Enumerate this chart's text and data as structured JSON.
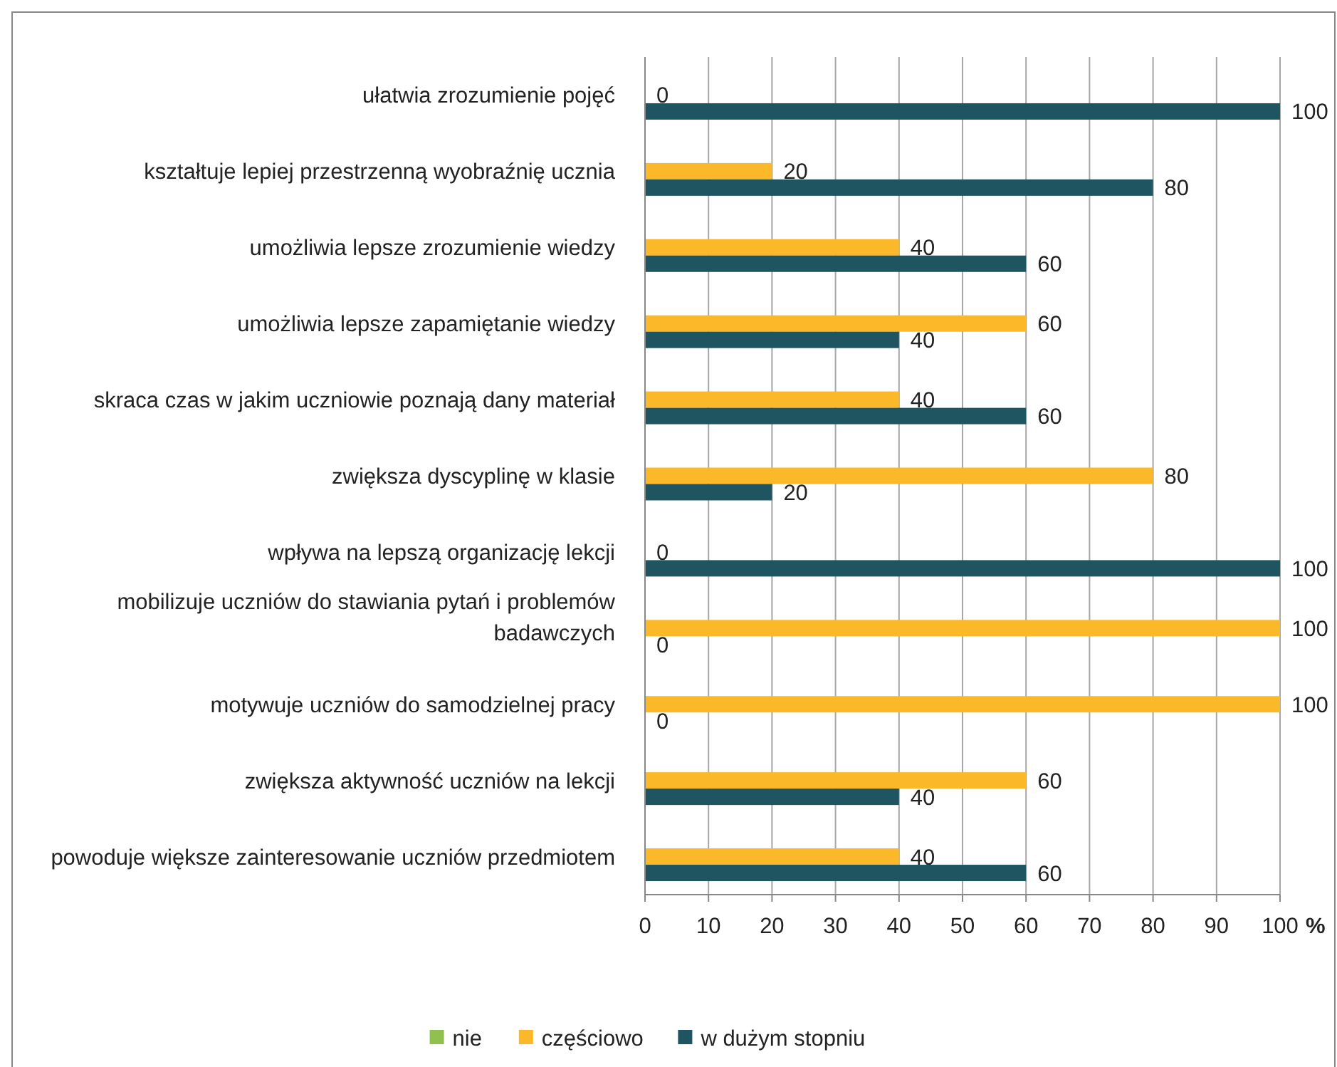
{
  "chart_data": {
    "type": "bar",
    "orientation": "horizontal",
    "categories": [
      "ułatwia zrozumienie pojęć",
      "kształtuje lepiej przestrzenną wyobraźnię ucznia",
      "umożliwia lepsze zrozumienie wiedzy",
      "umożliwia lepsze zapamiętanie wiedzy",
      "skraca czas w jakim uczniowie poznają dany materiał",
      "zwiększa dyscyplinę w klasie",
      "wpływa na lepszą organizację lekcji",
      "mobilizuje uczniów do stawiania pytań i problemów badawczych",
      "motywuje uczniów do samodzielnej pracy",
      "zwiększa aktywność uczniów na lekcji",
      "powoduje większe zainteresowanie uczniów przedmiotem"
    ],
    "series": [
      {
        "name": "nie",
        "color": "#92c050",
        "values": [
          null,
          null,
          null,
          null,
          null,
          null,
          null,
          null,
          null,
          null,
          null
        ]
      },
      {
        "name": "częściowo",
        "color": "#fbb92a",
        "values": [
          0,
          20,
          40,
          60,
          40,
          80,
          0,
          100,
          100,
          60,
          40
        ]
      },
      {
        "name": "w dużym stopniu",
        "color": "#1f5560",
        "values": [
          100,
          80,
          60,
          40,
          60,
          20,
          100,
          0,
          0,
          40,
          60
        ]
      }
    ],
    "xlim": [
      0,
      100
    ],
    "xticks": [
      0,
      10,
      20,
      30,
      40,
      50,
      60,
      70,
      80,
      90,
      100
    ],
    "xlabel": "%",
    "grid": "x",
    "data_labels": true,
    "legend": "bottom"
  }
}
